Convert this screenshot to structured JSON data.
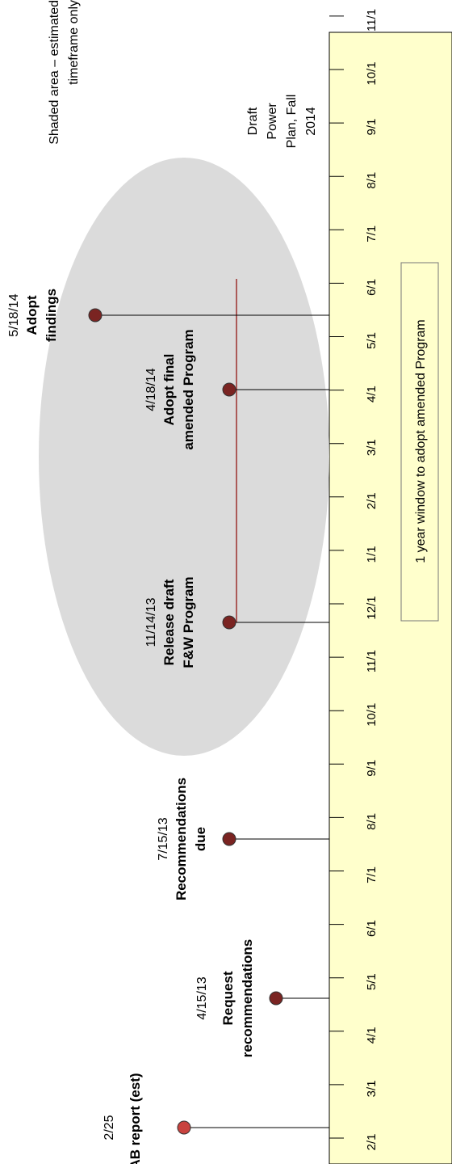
{
  "timeline": {
    "ticks": [
      "2/1",
      "3/1",
      "4/1",
      "5/1",
      "6/1",
      "7/1",
      "8/1",
      "9/1",
      "10/1",
      "11/1",
      "12/1",
      "1/1",
      "2/1",
      "3/1",
      "4/1",
      "5/1",
      "6/1",
      "7/1",
      "8/1",
      "9/1",
      "10/1",
      "11/1"
    ],
    "window_label": "1 year window to adopt amended Program"
  },
  "milestones": [
    {
      "date": "2/25",
      "label": "ISAB report (est)",
      "color": "#c9433f"
    },
    {
      "date": "4/15/13",
      "label": "Request recommendations",
      "color": "#7a2422"
    },
    {
      "date": "7/15/13",
      "label": "Recommendations due",
      "color": "#7a2422"
    },
    {
      "date": "11/14/13",
      "label": "Release draft F&W Program",
      "color": "#7a2422"
    },
    {
      "date": "4/18/14",
      "label": "Adopt final amended Program",
      "color": "#7a2422"
    },
    {
      "date": "5/18/14",
      "label": "Adopt findings",
      "color": "#7a2422"
    }
  ],
  "notes": {
    "shaded": "Shaded area – estimated timeframe only",
    "power_plan": "Draft Power Plan, Fall 2014"
  },
  "colors": {
    "band": "#ffffcc",
    "shade": "#d9d9d9",
    "marker": "#7a2422",
    "accent_line": "#9b2f2c"
  }
}
